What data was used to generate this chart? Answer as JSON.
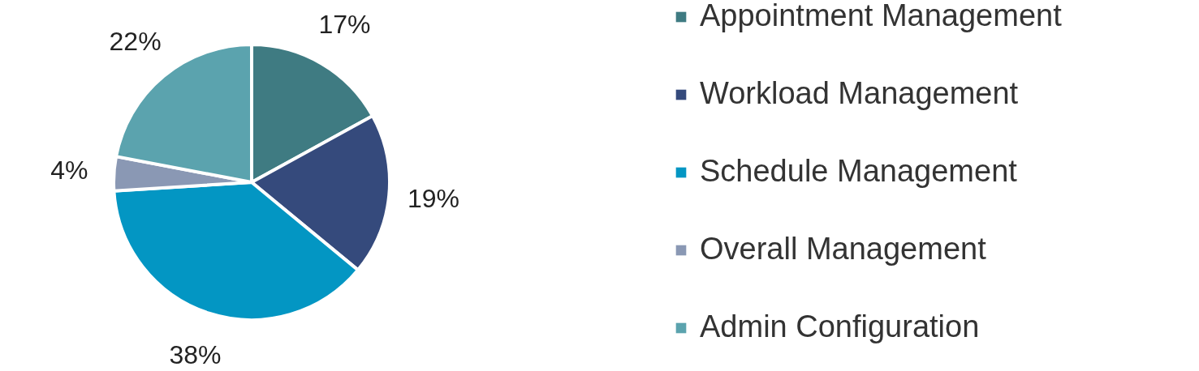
{
  "chart_data": {
    "type": "pie",
    "categories": [
      "Appointment Management",
      "Workload Management",
      "Schedule Management",
      "Overall Management",
      "Admin Configuration"
    ],
    "values": [
      17,
      19,
      38,
      4,
      22
    ],
    "colors": [
      "#3f7b82",
      "#354a7c",
      "#0396c3",
      "#8a98b4",
      "#5ba3ae"
    ],
    "value_labels": [
      "17%",
      "19%",
      "38%",
      "4%",
      "22%"
    ],
    "legend": "right"
  }
}
